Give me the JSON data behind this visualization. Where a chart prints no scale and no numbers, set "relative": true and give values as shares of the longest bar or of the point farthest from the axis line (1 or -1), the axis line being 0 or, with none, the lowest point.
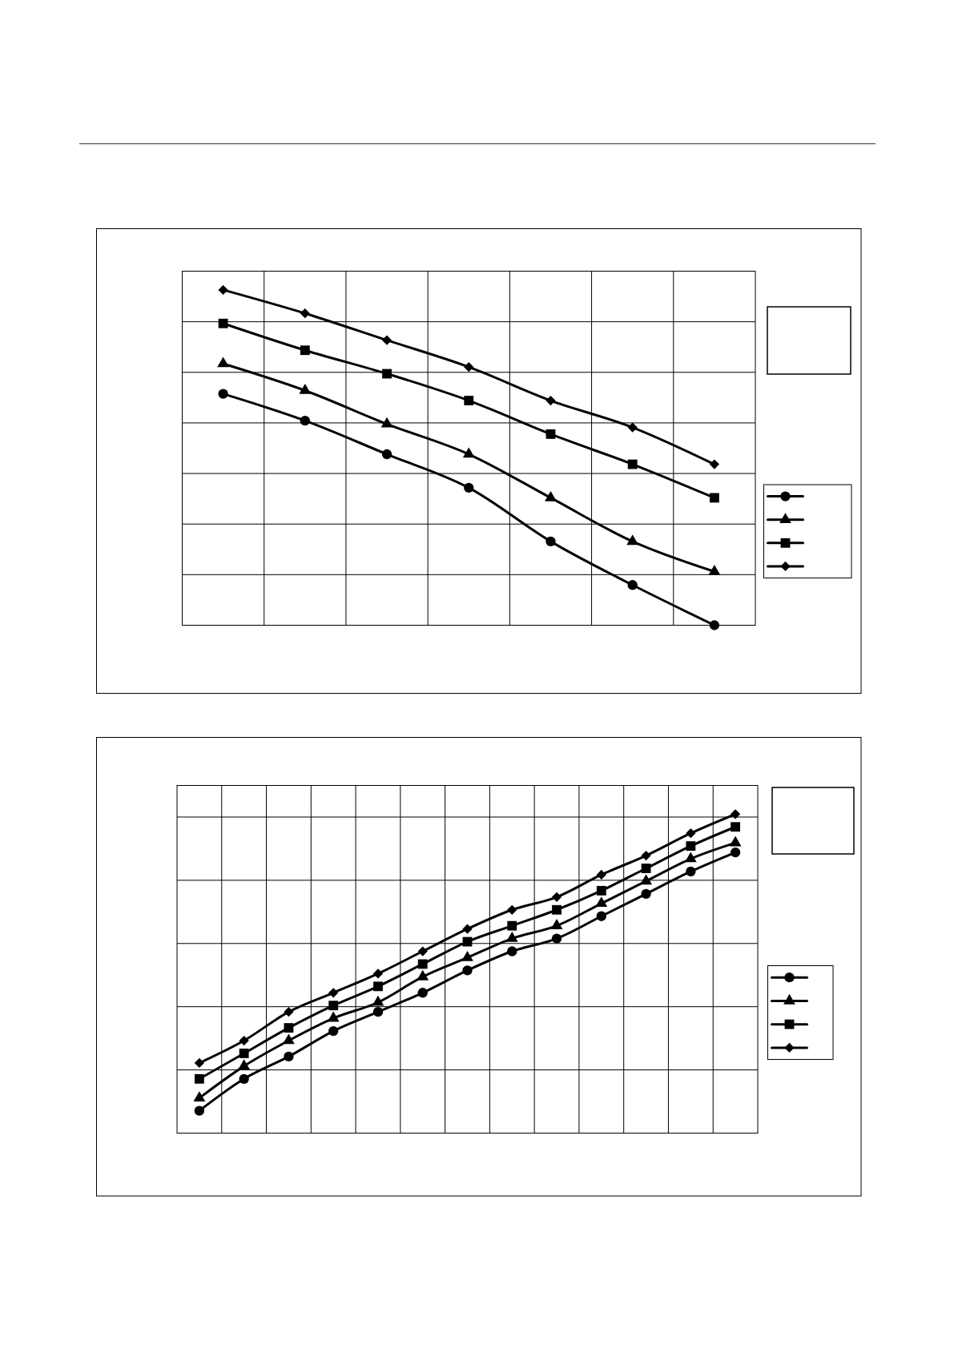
{
  "chart_data": [
    {
      "type": "line",
      "relative": true,
      "categories": [
        null,
        null,
        null,
        null,
        null,
        null,
        null
      ],
      "grid": true,
      "line_style": "solid",
      "series": [
        {
          "color": "#000000",
          "marker": "circle",
          "values": [
            0.69,
            0.61,
            0.51,
            0.41,
            0.25,
            0.12,
            0
          ]
        },
        {
          "color": "#000000",
          "marker": "triangle",
          "values": [
            0.78,
            0.7,
            0.6,
            0.51,
            0.38,
            0.25,
            0.16
          ]
        },
        {
          "color": "#000000",
          "marker": "square",
          "values": [
            0.9,
            0.82,
            0.75,
            0.67,
            0.57,
            0.48,
            0.38
          ]
        },
        {
          "color": "#000000",
          "marker": "diamond",
          "values": [
            1,
            0.93,
            0.85,
            0.77,
            0.67,
            0.59,
            0.48
          ]
        }
      ]
    },
    {
      "type": "line",
      "relative": true,
      "categories": [
        null,
        null,
        null,
        null,
        null,
        null,
        null,
        null,
        null,
        null,
        null,
        null,
        null
      ],
      "grid": true,
      "line_style": "solid",
      "series": [
        {
          "color": "#000000",
          "marker": "circle",
          "values": [
            0.07,
            0.17,
            0.24,
            0.32,
            0.38,
            0.44,
            0.51,
            0.57,
            0.61,
            0.68,
            0.75,
            0.82,
            0.88
          ]
        },
        {
          "color": "#000000",
          "marker": "triangle",
          "values": [
            0.11,
            0.21,
            0.29,
            0.36,
            0.41,
            0.49,
            0.55,
            0.61,
            0.65,
            0.72,
            0.79,
            0.86,
            0.91
          ]
        },
        {
          "color": "#000000",
          "marker": "square",
          "values": [
            0.17,
            0.25,
            0.33,
            0.4,
            0.46,
            0.53,
            0.6,
            0.65,
            0.7,
            0.76,
            0.83,
            0.9,
            0.96
          ]
        },
        {
          "color": "#000000",
          "marker": "diamond",
          "values": [
            0.22,
            0.29,
            0.38,
            0.44,
            0.5,
            0.57,
            0.64,
            0.7,
            0.74,
            0.81,
            0.87,
            0.94,
            1
          ]
        }
      ]
    }
  ]
}
